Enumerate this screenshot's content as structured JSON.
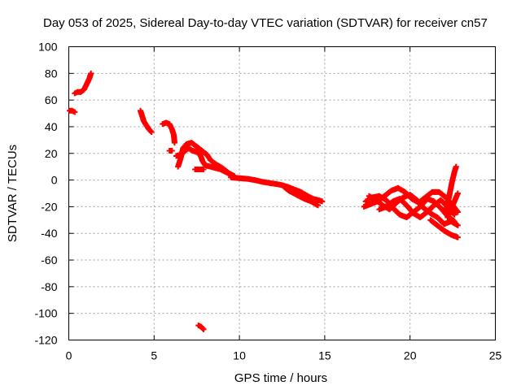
{
  "chart_data": {
    "type": "scatter",
    "title": "Day 053 of 2025, Sidereal Day-to-day VTEC variation (SDTVAR) for receiver cn57",
    "xlabel": "GPS time / hours",
    "ylabel": "SDTVAR / TECUs",
    "xlim": [
      0,
      25
    ],
    "ylim": [
      -120,
      100
    ],
    "xticks": [
      "0",
      "5",
      "10",
      "15",
      "20",
      "25"
    ],
    "yticks": [
      "100",
      "80",
      "60",
      "40",
      "20",
      "0",
      "-20",
      "-40",
      "-60",
      "-80",
      "-100",
      "-120"
    ],
    "grid": true,
    "marker": "plus",
    "series": [
      {
        "name": "SDTVAR",
        "color": "#ff0000",
        "segments": [
          [
            [
              0.05,
              52
            ],
            [
              0.2,
              52
            ],
            [
              0.35,
              51
            ]
          ],
          [
            [
              0.35,
              65
            ],
            [
              0.5,
              66
            ],
            [
              0.7,
              66
            ],
            [
              0.9,
              68
            ],
            [
              1.05,
              72
            ],
            [
              1.2,
              76
            ],
            [
              1.3,
              80
            ]
          ],
          [
            [
              4.2,
              52
            ],
            [
              4.3,
              48
            ],
            [
              4.4,
              44
            ],
            [
              4.55,
              41
            ],
            [
              4.7,
              38
            ],
            [
              4.85,
              36
            ]
          ],
          [
            [
              5.5,
              42
            ],
            [
              5.7,
              43
            ],
            [
              5.9,
              42
            ],
            [
              6.05,
              38
            ],
            [
              6.15,
              34
            ],
            [
              6.2,
              28
            ]
          ],
          [
            [
              5.9,
              22
            ],
            [
              6.05,
              22
            ]
          ],
          [
            [
              6.3,
              18
            ],
            [
              6.5,
              19
            ],
            [
              6.75,
              21
            ],
            [
              7.0,
              24
            ],
            [
              7.25,
              22
            ],
            [
              7.5,
              21
            ],
            [
              7.7,
              19
            ],
            [
              7.85,
              14
            ],
            [
              8.0,
              11
            ],
            [
              8.3,
              10
            ],
            [
              8.6,
              9
            ],
            [
              8.9,
              8
            ],
            [
              9.2,
              6
            ],
            [
              9.5,
              4
            ]
          ],
          [
            [
              6.4,
              10
            ],
            [
              6.55,
              16
            ],
            [
              6.7,
              24
            ],
            [
              6.9,
              27
            ],
            [
              7.2,
              28
            ],
            [
              7.5,
              25
            ],
            [
              7.8,
              22
            ],
            [
              8.1,
              19
            ],
            [
              8.3,
              15
            ],
            [
              8.6,
              12
            ],
            [
              9.0,
              9
            ],
            [
              9.4,
              5
            ],
            [
              9.7,
              3
            ]
          ],
          [
            [
              7.4,
              8
            ],
            [
              7.65,
              8
            ],
            [
              7.9,
              8
            ]
          ],
          [
            [
              9.5,
              2
            ],
            [
              9.9,
              1.5
            ],
            [
              10.4,
              1
            ],
            [
              10.9,
              0
            ],
            [
              11.4,
              -1.5
            ],
            [
              11.9,
              -2.5
            ],
            [
              12.4,
              -3.5
            ],
            [
              12.8,
              -5
            ],
            [
              13.2,
              -7
            ],
            [
              13.6,
              -9
            ],
            [
              14.0,
              -12
            ],
            [
              14.3,
              -14
            ],
            [
              14.6,
              -15
            ],
            [
              14.85,
              -16
            ]
          ],
          [
            [
              12.6,
              -5
            ],
            [
              12.9,
              -8
            ],
            [
              13.2,
              -10
            ],
            [
              13.5,
              -12
            ],
            [
              13.8,
              -14
            ],
            [
              14.2,
              -16
            ],
            [
              14.6,
              -19
            ]
          ],
          [
            [
              7.6,
              -109
            ],
            [
              7.75,
              -110
            ],
            [
              7.9,
              -112
            ]
          ],
          [
            [
              17.3,
              -20
            ],
            [
              17.7,
              -18
            ],
            [
              18.1,
              -16
            ],
            [
              18.5,
              -12
            ],
            [
              18.9,
              -8
            ],
            [
              19.3,
              -6
            ],
            [
              19.7,
              -9
            ],
            [
              20.1,
              -14
            ],
            [
              20.5,
              -17
            ],
            [
              20.9,
              -13
            ],
            [
              21.3,
              -9
            ],
            [
              21.7,
              -9
            ],
            [
              22.1,
              -13
            ],
            [
              22.5,
              -19
            ],
            [
              22.8,
              -24
            ]
          ],
          [
            [
              17.4,
              -16
            ],
            [
              17.8,
              -13
            ],
            [
              18.2,
              -12
            ],
            [
              18.6,
              -15
            ],
            [
              19.0,
              -21
            ],
            [
              19.4,
              -26
            ],
            [
              19.8,
              -28
            ],
            [
              20.2,
              -24
            ],
            [
              20.6,
              -20
            ],
            [
              21.0,
              -14
            ],
            [
              21.4,
              -16
            ],
            [
              21.8,
              -21
            ],
            [
              22.2,
              -27
            ],
            [
              22.6,
              -31
            ]
          ],
          [
            [
              17.6,
              -12
            ],
            [
              18.0,
              -15
            ],
            [
              18.4,
              -19
            ],
            [
              18.8,
              -22
            ],
            [
              19.2,
              -17
            ],
            [
              19.6,
              -13
            ],
            [
              20.0,
              -11
            ],
            [
              20.4,
              -15
            ],
            [
              20.8,
              -21
            ],
            [
              21.2,
              -25
            ],
            [
              21.6,
              -28
            ],
            [
              22.0,
              -33
            ],
            [
              22.4,
              -31
            ],
            [
              22.8,
              -34
            ]
          ],
          [
            [
              18.2,
              -22
            ],
            [
              18.6,
              -20
            ],
            [
              19.0,
              -16
            ],
            [
              19.4,
              -14
            ],
            [
              19.8,
              -19
            ],
            [
              20.2,
              -25
            ],
            [
              20.6,
              -28
            ],
            [
              21.0,
              -24
            ],
            [
              21.4,
              -19
            ],
            [
              21.8,
              -15
            ],
            [
              22.2,
              -20
            ],
            [
              22.6,
              -26
            ]
          ],
          [
            [
              21.2,
              -30
            ],
            [
              21.6,
              -34
            ],
            [
              22.0,
              -38
            ],
            [
              22.4,
              -41
            ],
            [
              22.8,
              -43
            ]
          ],
          [
            [
              22.1,
              -23
            ],
            [
              22.3,
              -12
            ],
            [
              22.45,
              -2
            ],
            [
              22.6,
              6
            ],
            [
              22.7,
              10
            ]
          ],
          [
            [
              22.2,
              -28
            ],
            [
              22.4,
              -22
            ],
            [
              22.6,
              -16
            ],
            [
              22.8,
              -10
            ]
          ]
        ]
      }
    ]
  }
}
